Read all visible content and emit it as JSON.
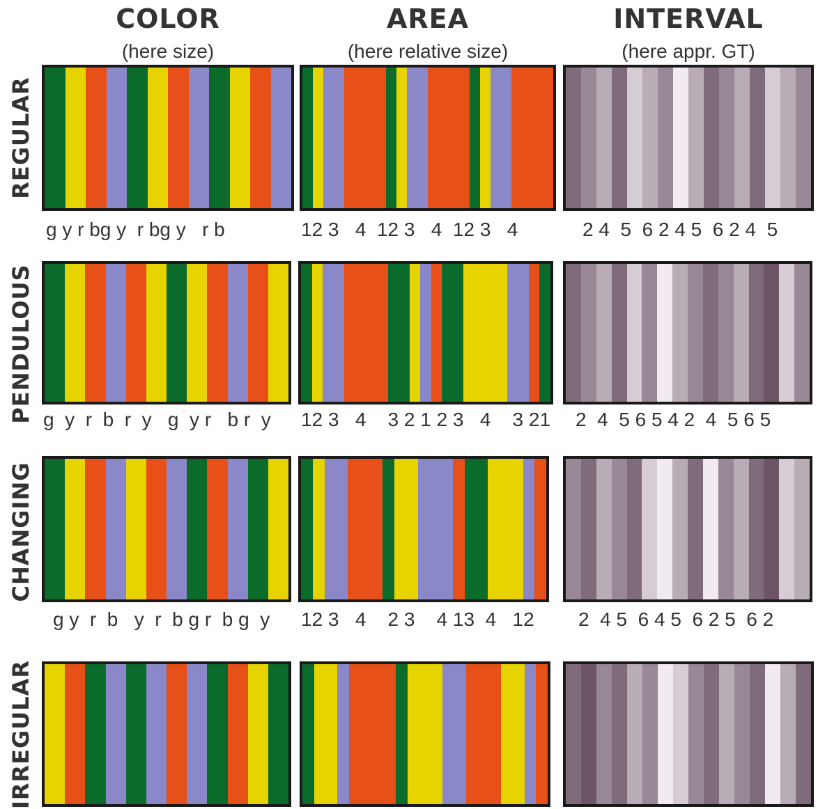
{
  "colors": {
    "g": "#0a6b2a",
    "y": "#e7d300",
    "r": "#e8501a",
    "b": "#8a88c8"
  },
  "grays": {
    "1": "#6e5566",
    "2": "#806b7b",
    "3": "#998895",
    "4": "#b8adb6",
    "5": "#d6cdd4",
    "6": "#f1eaf0"
  },
  "columns": [
    {
      "title": "COLOR",
      "subtitle": "(here size)"
    },
    {
      "title": "AREA",
      "subtitle": "(here relative size)"
    },
    {
      "title": "INTERVAL",
      "subtitle": "(here appr. GT)"
    }
  ],
  "rows": [
    {
      "label": "REGULAR",
      "color_seq": "g y r bg y  r bg y   r b",
      "area_seq": "12 3   4  12 3   4  12 3   4",
      "interval_seq": "2 4  5  6 2 4 5  6 2 4  5",
      "color_stripes": [
        "g",
        "y",
        "r",
        "b",
        "g",
        "y",
        "r",
        "b",
        "g",
        "y",
        "r",
        "b"
      ],
      "area_stripes": [
        [
          "g",
          1
        ],
        [
          "y",
          1
        ],
        [
          "b",
          2
        ],
        [
          "r",
          4
        ],
        [
          "g",
          1
        ],
        [
          "y",
          1
        ],
        [
          "b",
          2
        ],
        [
          "r",
          4
        ],
        [
          "g",
          1
        ],
        [
          "y",
          1
        ],
        [
          "b",
          2
        ],
        [
          "r",
          4
        ]
      ],
      "interval_stripes": [
        "2",
        "3",
        "4",
        "2",
        "5",
        "4",
        "3",
        "6",
        "4",
        "2",
        "3",
        "4",
        "2",
        "5",
        "4",
        "3"
      ]
    },
    {
      "label": "PENDULOUS",
      "color_seq": "g  y  r  b  r  y   g  y r   b r  y",
      "area_seq": "12 3   4    3 2 1 2 3   4    3 21",
      "interval_seq": "2  4  5 6 5 4 2  4  5 6 5",
      "color_stripes": [
        "g",
        "y",
        "r",
        "b",
        "r",
        "y",
        "g",
        "y",
        "r",
        "b",
        "r",
        "y"
      ],
      "area_stripes": [
        [
          "g",
          1
        ],
        [
          "y",
          1
        ],
        [
          "b",
          2
        ],
        [
          "r",
          4
        ],
        [
          "g",
          2
        ],
        [
          "y",
          1
        ],
        [
          "b",
          1
        ],
        [
          "r",
          1
        ],
        [
          "g",
          2
        ],
        [
          "y",
          4
        ],
        [
          "b",
          2
        ],
        [
          "r",
          1
        ],
        [
          "g",
          1
        ]
      ],
      "interval_stripes": [
        "2",
        "3",
        "4",
        "2",
        "5",
        "3",
        "6",
        "4",
        "3",
        "2",
        "3",
        "4",
        "2",
        "1",
        "5",
        "3"
      ]
    },
    {
      "label": "CHANGING",
      "color_seq": "g y  r  b   y  r  b g r  b g  y",
      "area_seq": "12 3   4    2 3    4 13  4   12",
      "interval_seq": "2  4 5  6 4 5  6 2 5  6 2",
      "color_stripes": [
        "g",
        "y",
        "r",
        "b",
        "y",
        "r",
        "b",
        "g",
        "r",
        "b",
        "g",
        "y"
      ],
      "area_stripes": [
        [
          "g",
          1
        ],
        [
          "y",
          1
        ],
        [
          "b",
          2
        ],
        [
          "r",
          3
        ],
        [
          "g",
          1
        ],
        [
          "y",
          2
        ],
        [
          "b",
          3
        ],
        [
          "r",
          1
        ],
        [
          "g",
          2
        ],
        [
          "y",
          3
        ],
        [
          "b",
          1
        ],
        [
          "r",
          1
        ]
      ],
      "interval_stripes": [
        "3",
        "2",
        "4",
        "3",
        "2",
        "5",
        "6",
        "4",
        "2",
        "6",
        "3",
        "4",
        "2",
        "1",
        "5",
        "4"
      ]
    },
    {
      "label": "IRREGULAR",
      "color_stripes": [
        "y",
        "r",
        "g",
        "b",
        "g",
        "b",
        "r",
        "b",
        "g",
        "r",
        "y",
        "g"
      ],
      "area_stripes": [
        [
          "g",
          1
        ],
        [
          "y",
          2
        ],
        [
          "b",
          1
        ],
        [
          "r",
          4
        ],
        [
          "g",
          1
        ],
        [
          "y",
          3
        ],
        [
          "b",
          2
        ],
        [
          "r",
          3
        ],
        [
          "y",
          2
        ],
        [
          "b",
          1
        ],
        [
          "r",
          1
        ]
      ],
      "interval_stripes": [
        "2",
        "1",
        "3",
        "2",
        "4",
        "3",
        "6",
        "5",
        "3",
        "2",
        "4",
        "3",
        "2",
        "6",
        "4",
        "2"
      ]
    }
  ]
}
